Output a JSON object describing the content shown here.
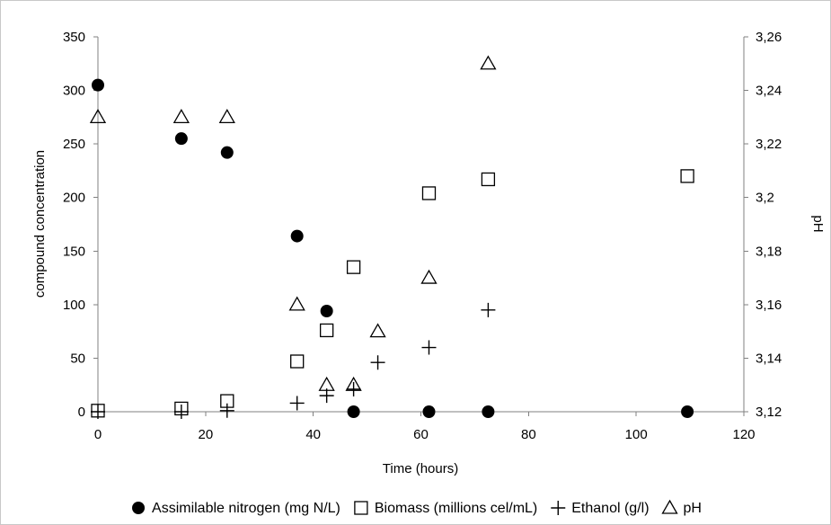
{
  "chart_data": {
    "type": "scatter",
    "title": "",
    "xlabel": "Time (hours)",
    "ylabel": "compound concentration",
    "y2label": "pH",
    "xlim": [
      0,
      120
    ],
    "ylim": [
      0,
      350
    ],
    "y2lim": [
      3.12,
      3.26
    ],
    "x_ticks": [
      "0",
      "20",
      "40",
      "60",
      "80",
      "100",
      "120"
    ],
    "y_ticks": [
      "0",
      "50",
      "100",
      "150",
      "200",
      "250",
      "300",
      "350"
    ],
    "y2_ticks": [
      "3,12",
      "3,14",
      "3,16",
      "3,18",
      "3,2",
      "3,22",
      "3,24",
      "3,26"
    ],
    "grid": false,
    "legend_position": "bottom",
    "series": [
      {
        "name": "Assimilable nitrogen (mg N/L)",
        "marker": "filled-circle",
        "axis": "left",
        "x": [
          0,
          15.5,
          24,
          37,
          42.5,
          47.5,
          61.5,
          72.5,
          109.5
        ],
        "y": [
          305,
          255,
          242,
          164,
          94,
          0,
          0,
          0,
          0
        ]
      },
      {
        "name": "Biomass (millions cel/mL)",
        "marker": "open-square",
        "axis": "left",
        "x": [
          0,
          15.5,
          24,
          37,
          42.5,
          47.5,
          61.5,
          72.5,
          109.5
        ],
        "y": [
          1,
          3,
          10,
          47,
          76,
          135,
          204,
          217,
          220
        ]
      },
      {
        "name": "Ethanol (g/l)",
        "marker": "plus",
        "axis": "left",
        "x": [
          0,
          15.5,
          24,
          37,
          42.5,
          47.5,
          52,
          61.5,
          72.5
        ],
        "y": [
          0,
          0,
          1,
          8,
          15,
          21,
          46,
          60,
          95
        ]
      },
      {
        "name": "pH",
        "marker": "open-triangle",
        "axis": "right",
        "x": [
          0,
          15.5,
          24,
          37,
          42.5,
          47.5,
          52,
          61.5,
          72.5
        ],
        "y": [
          3.23,
          3.23,
          3.23,
          3.16,
          3.13,
          3.13,
          3.15,
          3.17,
          3.25
        ]
      }
    ]
  }
}
